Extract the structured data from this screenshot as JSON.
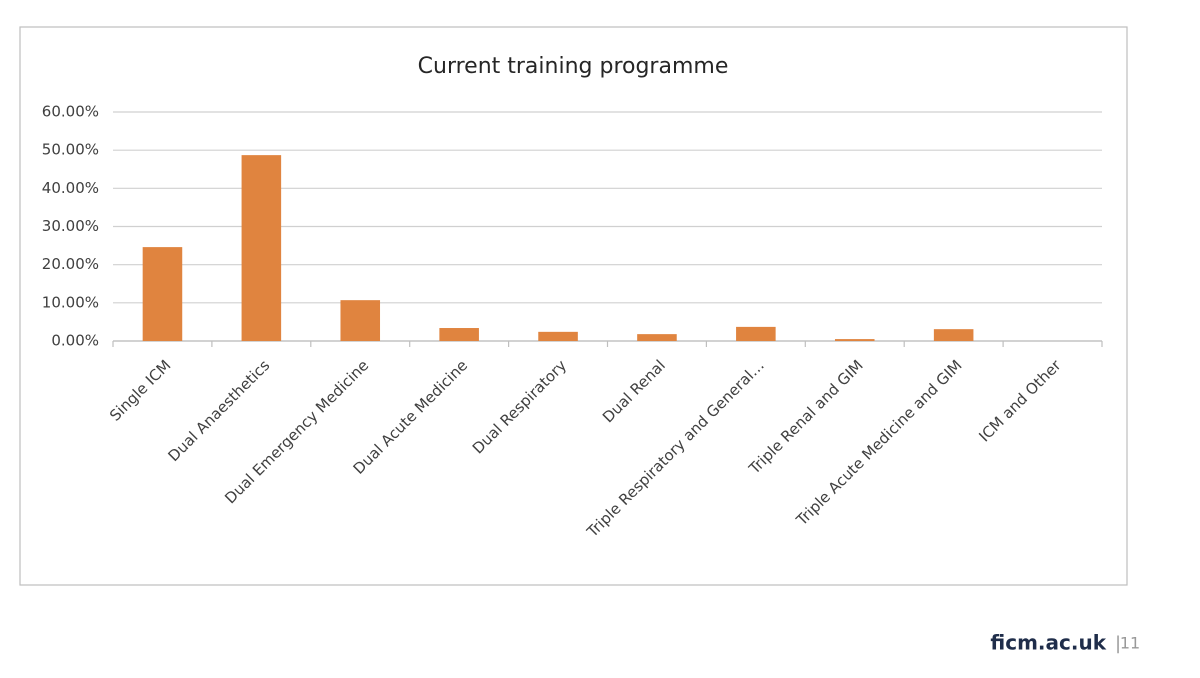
{
  "chart_data": {
    "type": "bar",
    "title": "Current training programme",
    "categories": [
      "Single ICM",
      "Dual Anaesthetics",
      "Dual Emergency Medicine",
      "Dual Acute Medicine",
      "Dual Respiratory",
      "Dual Renal",
      "Triple Respiratory and General…",
      "Triple Renal and GIM",
      "Triple Acute Medicine and GIM",
      "ICM and Other"
    ],
    "values": [
      24.6,
      48.7,
      10.7,
      3.4,
      2.4,
      1.8,
      3.7,
      0.5,
      3.1,
      0
    ],
    "color": "#e0843f",
    "ylim": [
      0,
      60
    ],
    "yticks": [
      {
        "value": 0,
        "label": "0.00%"
      },
      {
        "value": 10,
        "label": "10.00%"
      },
      {
        "value": 20,
        "label": "20.00%"
      },
      {
        "value": 30,
        "label": "30.00%"
      },
      {
        "value": 40,
        "label": "40.00%"
      },
      {
        "value": 50,
        "label": "50.00%"
      },
      {
        "value": 60,
        "label": "60.00%"
      }
    ],
    "grid": true
  },
  "footer": {
    "site": "ficm.ac.uk",
    "separator": "|",
    "page": "11"
  }
}
